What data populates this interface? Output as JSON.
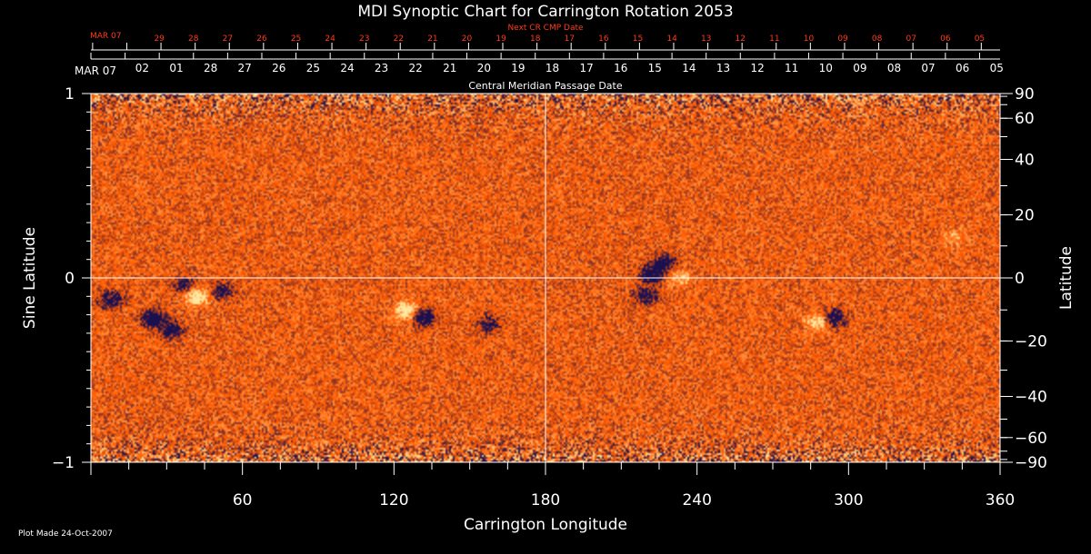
{
  "colors": {
    "background": "#000000",
    "axis": "#ffffff",
    "next_cr_accent": "#ff3b1a",
    "map_base": "#ff5a00",
    "map_bright": "#ffe9a0",
    "map_dark": "#1a1050"
  },
  "chart_data": {
    "type": "heatmap",
    "title": "MDI Synoptic Chart for Carrington Rotation 2053",
    "xlabel": "Carrington Longitude",
    "ylabel_left": "Sine Latitude",
    "ylabel_right": "Latitude",
    "footer": "Plot Made 24-Oct-2007",
    "xlim": [
      0,
      360
    ],
    "ylim": [
      -1,
      1
    ],
    "x_ticks": [
      60,
      120,
      180,
      240,
      300,
      360
    ],
    "x_tick_labels": [
      "60",
      "120",
      "180",
      "240",
      "300",
      "360"
    ],
    "y_left_ticks": [
      -1,
      0,
      1
    ],
    "y_left_tick_labels": [
      "−1",
      "0",
      "1"
    ],
    "y_right_ticks": [
      90,
      60,
      40,
      20,
      0,
      -20,
      -40,
      -60,
      -90
    ],
    "y_right_tick_labels": [
      "90",
      "60",
      "40",
      "20",
      "0",
      "−20",
      "−40",
      "−60",
      "−90"
    ],
    "reference_lines": {
      "longitude": 180,
      "sine_latitude": 0
    },
    "cmp_axis": {
      "label": "Central Meridian Passage Date",
      "start_label": "MAR 07",
      "dates": [
        "02",
        "01",
        "28",
        "27",
        "26",
        "25",
        "24",
        "23",
        "22",
        "21",
        "20",
        "19",
        "18",
        "17",
        "16",
        "15",
        "14",
        "13",
        "12",
        "11",
        "10",
        "09",
        "08",
        "07",
        "06",
        "05"
      ]
    },
    "next_cr_axis": {
      "label": "Next CR CMP Date",
      "start_label": "MAR 07",
      "dates": [
        "29",
        "28",
        "27",
        "26",
        "25",
        "24",
        "23",
        "22",
        "21",
        "20",
        "19",
        "18",
        "17",
        "16",
        "15",
        "14",
        "13",
        "12",
        "11",
        "10",
        "09",
        "08",
        "07",
        "06",
        "05"
      ]
    },
    "active_regions": [
      {
        "longitude": 8,
        "sine_latitude": -0.12,
        "polarity": "negative",
        "strength": 0.8
      },
      {
        "longitude": 25,
        "sine_latitude": -0.22,
        "polarity": "negative",
        "strength": 0.9
      },
      {
        "longitude": 32,
        "sine_latitude": -0.28,
        "polarity": "negative",
        "strength": 0.8
      },
      {
        "longitude": 42,
        "sine_latitude": -0.1,
        "polarity": "positive",
        "strength": 1.0
      },
      {
        "longitude": 52,
        "sine_latitude": -0.07,
        "polarity": "negative",
        "strength": 0.7
      },
      {
        "longitude": 37,
        "sine_latitude": -0.04,
        "polarity": "negative",
        "strength": 0.6
      },
      {
        "longitude": 125,
        "sine_latitude": -0.18,
        "polarity": "positive",
        "strength": 1.0
      },
      {
        "longitude": 132,
        "sine_latitude": -0.21,
        "polarity": "negative",
        "strength": 1.0
      },
      {
        "longitude": 158,
        "sine_latitude": -0.25,
        "polarity": "negative",
        "strength": 0.6
      },
      {
        "longitude": 222,
        "sine_latitude": 0.02,
        "polarity": "negative",
        "strength": 0.9
      },
      {
        "longitude": 227,
        "sine_latitude": 0.08,
        "polarity": "negative",
        "strength": 0.8
      },
      {
        "longitude": 220,
        "sine_latitude": -0.1,
        "polarity": "negative",
        "strength": 0.7
      },
      {
        "longitude": 233,
        "sine_latitude": 0.0,
        "polarity": "positive",
        "strength": 0.5
      },
      {
        "longitude": 288,
        "sine_latitude": -0.24,
        "polarity": "positive",
        "strength": 0.8
      },
      {
        "longitude": 294,
        "sine_latitude": -0.22,
        "polarity": "negative",
        "strength": 0.9
      },
      {
        "longitude": 342,
        "sine_latitude": 0.22,
        "polarity": "positive",
        "strength": 0.4
      }
    ]
  }
}
